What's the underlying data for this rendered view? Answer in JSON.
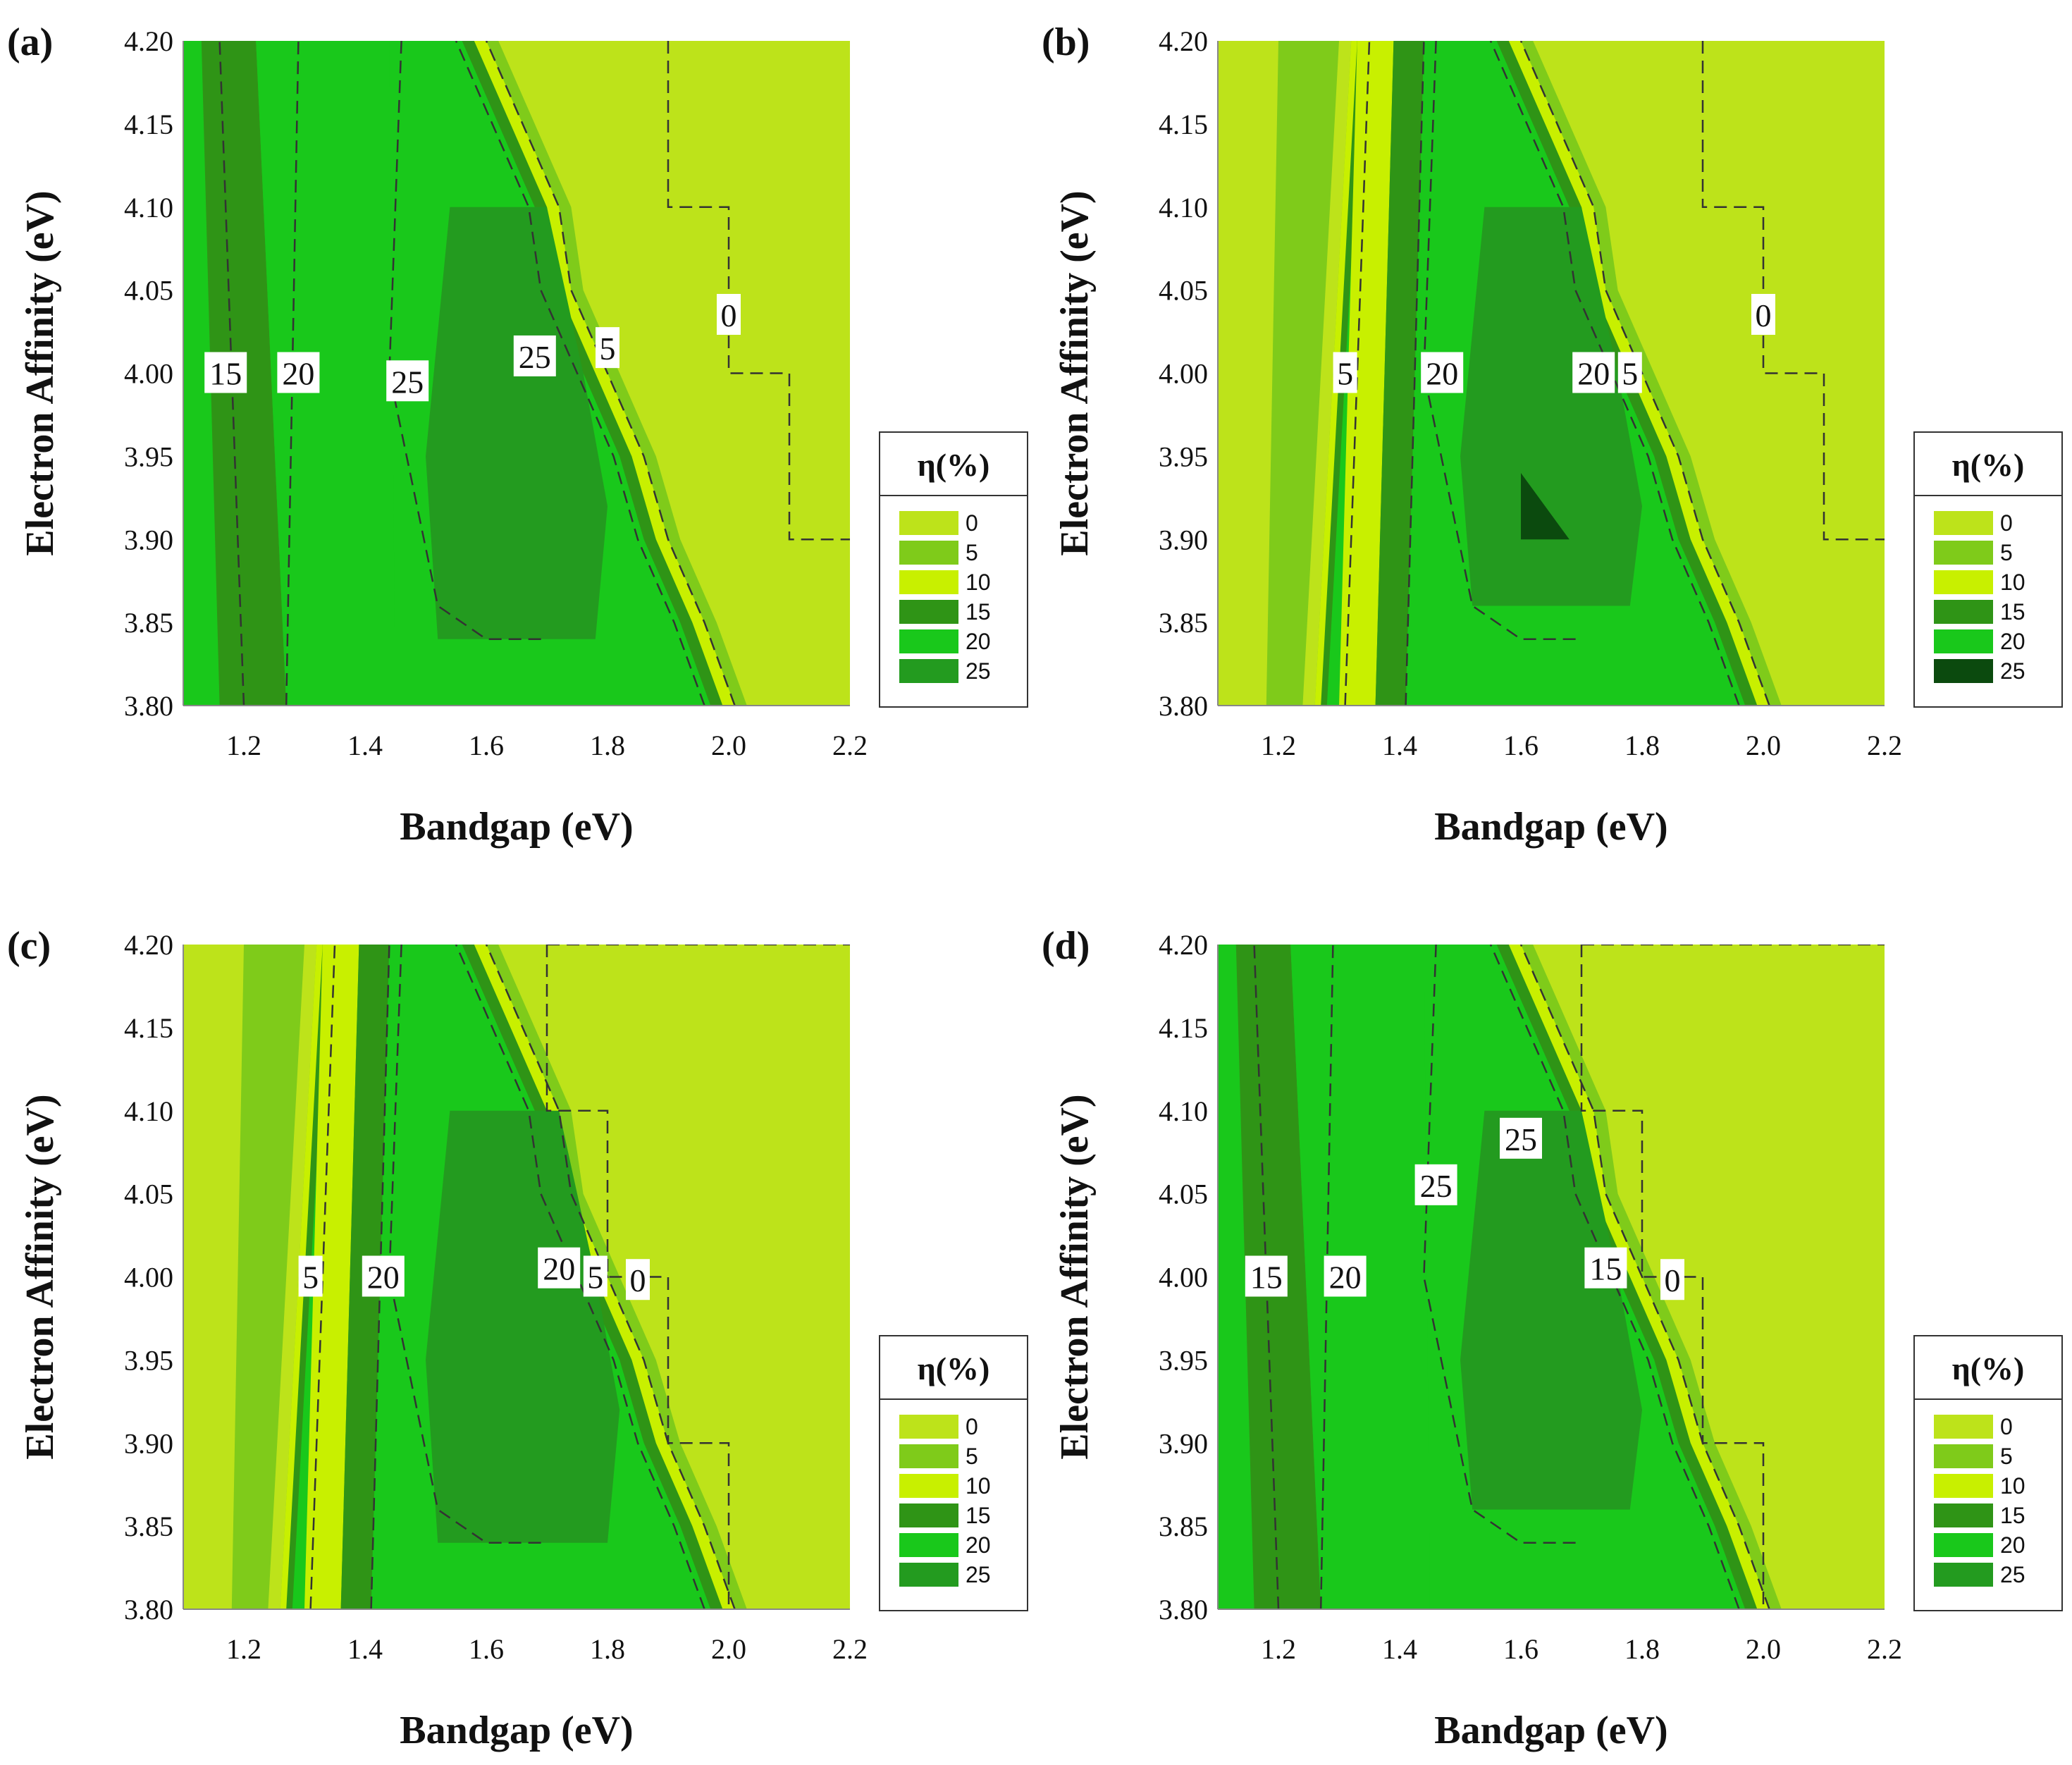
{
  "colors": {
    "band_0": "#bde31a",
    "band_5": "#7fcb1a",
    "band_10": "#c8f000",
    "band_15": "#2f9416",
    "band_20": "#19c81b",
    "band_25": "#239b1f",
    "band_25_dark": "#0b4a0e",
    "dashed_line": "#333333"
  },
  "chart_data": [
    {
      "type": "contour",
      "panel": "(a)",
      "xlabel": "Bandgap (eV)",
      "ylabel": "Electron Affinity (eV)",
      "xlim": [
        1.1,
        2.2
      ],
      "ylim": [
        3.8,
        4.2
      ],
      "xticks": [
        "1.2",
        "1.4",
        "1.6",
        "1.8",
        "2.0",
        "2.2"
      ],
      "yticks": [
        "3.80",
        "3.85",
        "3.90",
        "3.95",
        "4.00",
        "4.05",
        "4.10",
        "4.15",
        "4.20"
      ],
      "peak": {
        "xmin": 1.52,
        "xmax": 1.78,
        "ymin": 3.84,
        "ymax": 4.1
      },
      "legend": {
        "title": "η(%)",
        "levels": [
          "0",
          "5",
          "10",
          "15",
          "20",
          "25"
        ]
      },
      "contour_labels": [
        {
          "text": "15",
          "x": 1.17,
          "y": 4.0
        },
        {
          "text": "20",
          "x": 1.29,
          "y": 4.0
        },
        {
          "text": "25",
          "x": 1.47,
          "y": 3.995
        },
        {
          "text": "25",
          "x": 1.68,
          "y": 4.01
        },
        {
          "text": "5",
          "x": 1.8,
          "y": 4.015
        },
        {
          "text": "0",
          "x": 2.0,
          "y": 4.035
        }
      ]
    },
    {
      "type": "contour",
      "panel": "(b)",
      "xlabel": "Bandgap (eV)",
      "ylabel": "Electron Affinity (eV)",
      "xlim": [
        1.1,
        2.2
      ],
      "ylim": [
        3.8,
        4.2
      ],
      "xticks": [
        "1.2",
        "1.4",
        "1.6",
        "1.8",
        "2.0",
        "2.2"
      ],
      "yticks": [
        "3.80",
        "3.85",
        "3.90",
        "3.95",
        "4.00",
        "4.05",
        "4.10",
        "4.15",
        "4.20"
      ],
      "peak": {
        "xmin": 1.52,
        "xmax": 1.78,
        "ymin": 3.86,
        "ymax": 4.1
      },
      "legend": {
        "title": "η(%)",
        "levels": [
          "0",
          "5",
          "10",
          "15",
          "20",
          "25"
        ]
      },
      "contour_labels": [
        {
          "text": "5",
          "x": 1.31,
          "y": 4.0
        },
        {
          "text": "20",
          "x": 1.47,
          "y": 4.0
        },
        {
          "text": "20",
          "x": 1.72,
          "y": 4.0
        },
        {
          "text": "5",
          "x": 1.78,
          "y": 4.0
        },
        {
          "text": "0",
          "x": 2.0,
          "y": 4.035
        }
      ]
    },
    {
      "type": "contour",
      "panel": "(c)",
      "xlabel": "Bandgap (eV)",
      "ylabel": "Electron Affinity (eV)",
      "xlim": [
        1.1,
        2.2
      ],
      "ylim": [
        3.8,
        4.2
      ],
      "xticks": [
        "1.2",
        "1.4",
        "1.6",
        "1.8",
        "2.0",
        "2.2"
      ],
      "yticks": [
        "3.80",
        "3.85",
        "3.90",
        "3.95",
        "4.00",
        "4.05",
        "4.10",
        "4.15",
        "4.20"
      ],
      "peak": {
        "xmin": 1.52,
        "xmax": 1.8,
        "ymin": 3.84,
        "ymax": 4.1
      },
      "legend": {
        "title": "η(%)",
        "levels": [
          "0",
          "5",
          "10",
          "15",
          "20",
          "25"
        ]
      },
      "contour_labels": [
        {
          "text": "5",
          "x": 1.31,
          "y": 4.0
        },
        {
          "text": "20",
          "x": 1.43,
          "y": 4.0
        },
        {
          "text": "20",
          "x": 1.72,
          "y": 4.005
        },
        {
          "text": "5",
          "x": 1.78,
          "y": 4.0
        },
        {
          "text": "0",
          "x": 1.85,
          "y": 3.998
        }
      ]
    },
    {
      "type": "contour",
      "panel": "(d)",
      "xlabel": "Bandgap (eV)",
      "ylabel": "Electron Affinity (eV)",
      "xlim": [
        1.1,
        2.2
      ],
      "ylim": [
        3.8,
        4.2
      ],
      "xticks": [
        "1.2",
        "1.4",
        "1.6",
        "1.8",
        "2.0",
        "2.2"
      ],
      "yticks": [
        "3.80",
        "3.85",
        "3.90",
        "3.95",
        "4.00",
        "4.05",
        "4.10",
        "4.15",
        "4.20"
      ],
      "peak": {
        "xmin": 1.52,
        "xmax": 1.78,
        "ymin": 3.86,
        "ymax": 4.1
      },
      "legend": {
        "title": "η(%)",
        "levels": [
          "0",
          "5",
          "10",
          "15",
          "20",
          "25"
        ]
      },
      "contour_labels": [
        {
          "text": "15",
          "x": 1.18,
          "y": 4.0
        },
        {
          "text": "20",
          "x": 1.31,
          "y": 4.0
        },
        {
          "text": "25",
          "x": 1.46,
          "y": 4.055
        },
        {
          "text": "25",
          "x": 1.6,
          "y": 4.083
        },
        {
          "text": "15",
          "x": 1.74,
          "y": 4.005
        },
        {
          "text": "0",
          "x": 1.85,
          "y": 3.998
        }
      ]
    }
  ]
}
